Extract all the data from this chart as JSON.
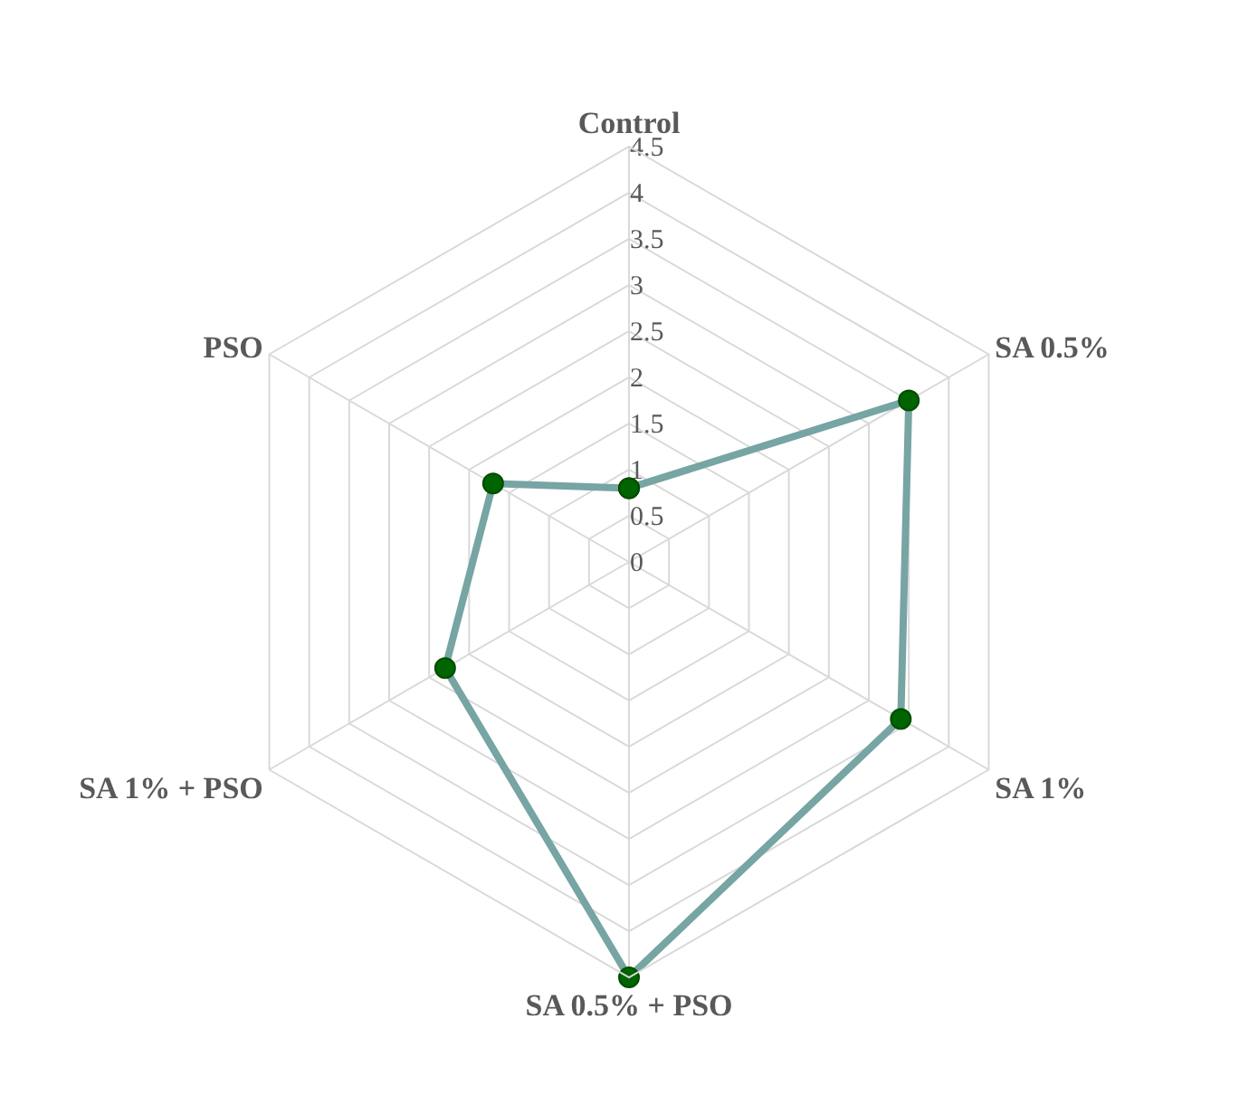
{
  "chart_data": {
    "type": "radar",
    "categories": [
      "Control",
      "SA 0.5%",
      "SA 1%",
      "SA 0.5% + PSO",
      "SA 1% + PSO",
      "PSO"
    ],
    "series": [
      {
        "color": "#76a5a3",
        "values": [
          0.8,
          3.5,
          3.4,
          4.5,
          2.3,
          1.7
        ]
      }
    ],
    "ylim": [
      0,
      4.5
    ],
    "yticks": [
      0,
      0.5,
      1,
      1.5,
      2,
      2.5,
      3,
      3.5,
      4,
      4.5
    ],
    "grid": true,
    "marker": "circle",
    "line_style": "solid"
  }
}
